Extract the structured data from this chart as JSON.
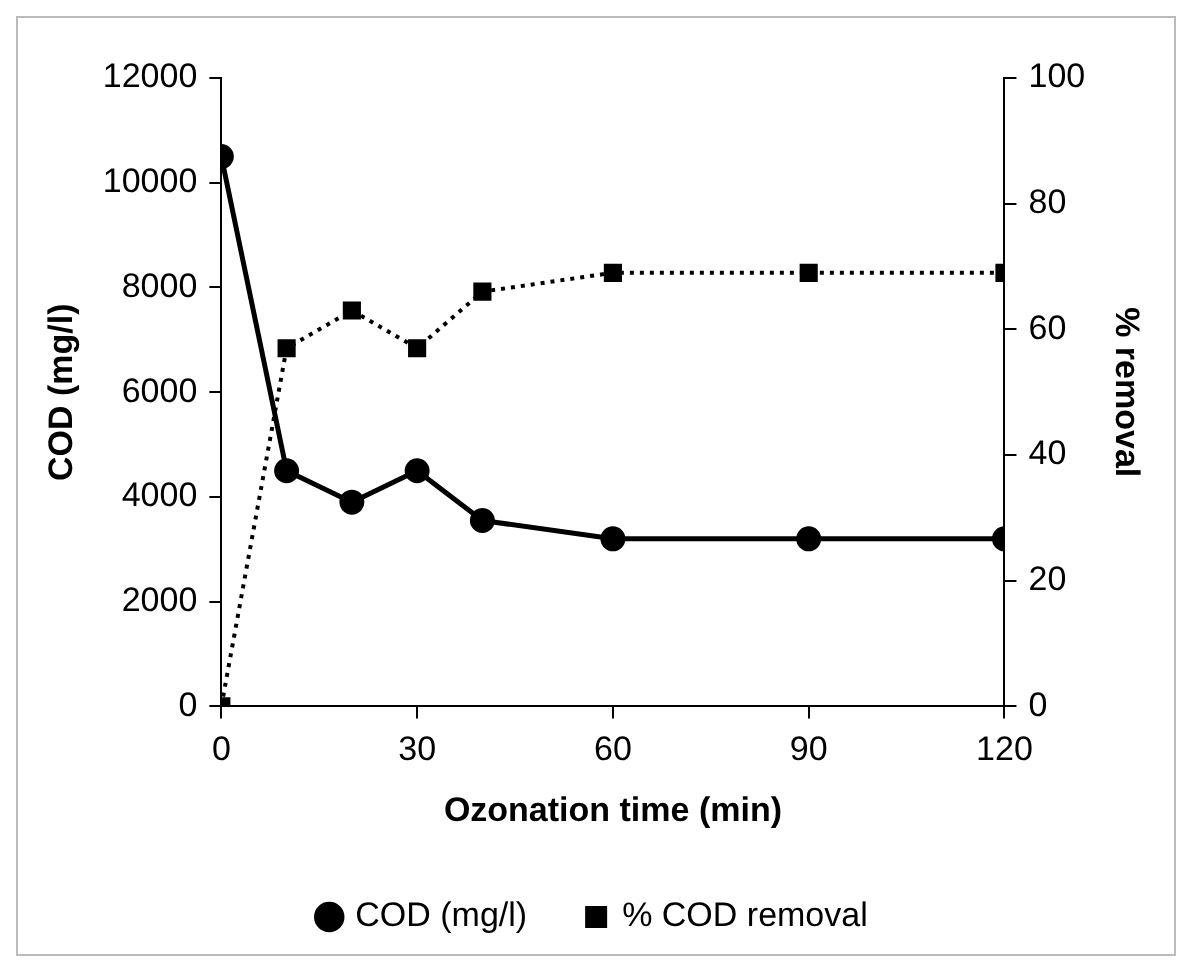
{
  "chart_data": {
    "type": "line",
    "xlabel": "Ozonation time (min)",
    "ylabel": "COD (mg/l)",
    "y2label": "% removal",
    "x": [
      0,
      10,
      20,
      30,
      40,
      60,
      90,
      120
    ],
    "series": [
      {
        "name": "COD (mg/l)",
        "color": "#000000",
        "marker": "circle",
        "line_style": "solid",
        "values": [
          10500,
          4500,
          3900,
          4500,
          3550,
          3200,
          3200,
          3200
        ]
      },
      {
        "name": "% COD removal",
        "color": "#000000",
        "marker": "square",
        "line_style": "dotted",
        "axis": "y2",
        "values": [
          0,
          57,
          63,
          57,
          66,
          69,
          69,
          69
        ]
      }
    ],
    "xlim": [
      0,
      120
    ],
    "xticks": [
      0,
      30,
      60,
      90,
      120
    ],
    "ylim": [
      0,
      12000
    ],
    "yticks": [
      0,
      2000,
      4000,
      6000,
      8000,
      10000,
      12000
    ],
    "y2lim": [
      0,
      100
    ],
    "y2ticks": [
      0,
      20,
      40,
      60,
      80,
      100
    ],
    "grid": false,
    "legend": "bottom"
  }
}
